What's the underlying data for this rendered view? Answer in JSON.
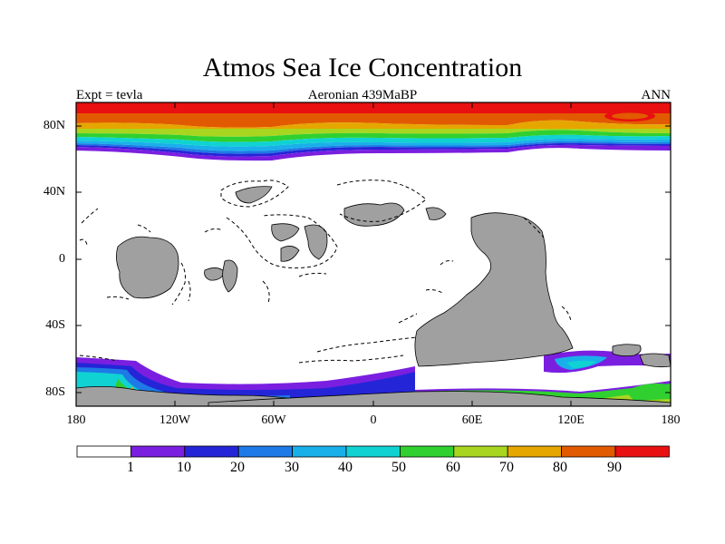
{
  "title": "Atmos Sea Ice Concentration",
  "subtitle_left": "Expt = tevla",
  "subtitle_center": "Aeronian 439MaBP",
  "subtitle_right": "ANN",
  "lat_labels": [
    "80N",
    "40N",
    "0",
    "40S",
    "80S"
  ],
  "lon_labels": [
    "180",
    "120W",
    "60W",
    "0",
    "60E",
    "120E",
    "180"
  ],
  "colorbar": {
    "labels": [
      "1",
      "10",
      "20",
      "30",
      "40",
      "50",
      "60",
      "70",
      "80",
      "90"
    ],
    "colors": [
      "#ffffff",
      "#7a1fe0",
      "#2525d8",
      "#1e7ae6",
      "#19b0ea",
      "#10d2d2",
      "#30d030",
      "#a8d620",
      "#e6a600",
      "#e25a00",
      "#e81010"
    ]
  },
  "land_color": "#a0a0a0"
}
